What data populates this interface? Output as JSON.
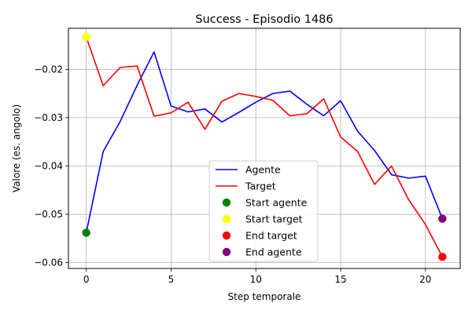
{
  "chart_data": {
    "type": "line",
    "title": "Success - Episodio 1486",
    "xlabel": "Step temporale",
    "ylabel": "Valore (es. angolo)",
    "xlim": [
      -1.05,
      22.05
    ],
    "ylim": [
      -0.0612,
      -0.0115
    ],
    "xticks": [
      0,
      5,
      10,
      15,
      20
    ],
    "yticks": [
      -0.06,
      -0.05,
      -0.04,
      -0.03,
      -0.02
    ],
    "ytick_labels": [
      "−0.06",
      "−0.05",
      "−0.04",
      "−0.03",
      "−0.02"
    ],
    "grid": true,
    "legend_position": "lower-center",
    "series": [
      {
        "name": "Agente",
        "color": "#0000ff",
        "x": [
          0,
          1,
          2,
          3,
          4,
          5,
          6,
          7,
          8,
          9,
          10,
          11,
          12,
          13,
          14,
          15,
          16,
          17,
          18,
          19,
          20,
          21
        ],
        "values": [
          -0.0538,
          -0.037,
          -0.0308,
          -0.0233,
          -0.0164,
          -0.0276,
          -0.0288,
          -0.0282,
          -0.0309,
          -0.0289,
          -0.0268,
          -0.025,
          -0.0245,
          -0.0272,
          -0.0296,
          -0.0265,
          -0.0328,
          -0.0368,
          -0.0418,
          -0.0425,
          -0.0421,
          -0.0509
        ]
      },
      {
        "name": "Target",
        "color": "#ff0000",
        "x": [
          0,
          1,
          2,
          3,
          4,
          5,
          6,
          7,
          8,
          9,
          10,
          11,
          12,
          13,
          14,
          15,
          16,
          17,
          18,
          19,
          20,
          21
        ],
        "values": [
          -0.0133,
          -0.0234,
          -0.0196,
          -0.0193,
          -0.0297,
          -0.029,
          -0.0268,
          -0.0324,
          -0.0266,
          -0.025,
          -0.0256,
          -0.0264,
          -0.0296,
          -0.0292,
          -0.0261,
          -0.034,
          -0.037,
          -0.0438,
          -0.04,
          -0.0469,
          -0.0521,
          -0.0588
        ]
      }
    ],
    "points": [
      {
        "name": "Start agente",
        "color": "#008000",
        "x": 0,
        "y": -0.0538
      },
      {
        "name": "Start target",
        "color": "#ffff00",
        "x": 0,
        "y": -0.0133
      },
      {
        "name": "End target",
        "color": "#ff0000",
        "x": 21,
        "y": -0.0588
      },
      {
        "name": "End agente",
        "color": "#800080",
        "x": 21,
        "y": -0.0509
      }
    ]
  }
}
